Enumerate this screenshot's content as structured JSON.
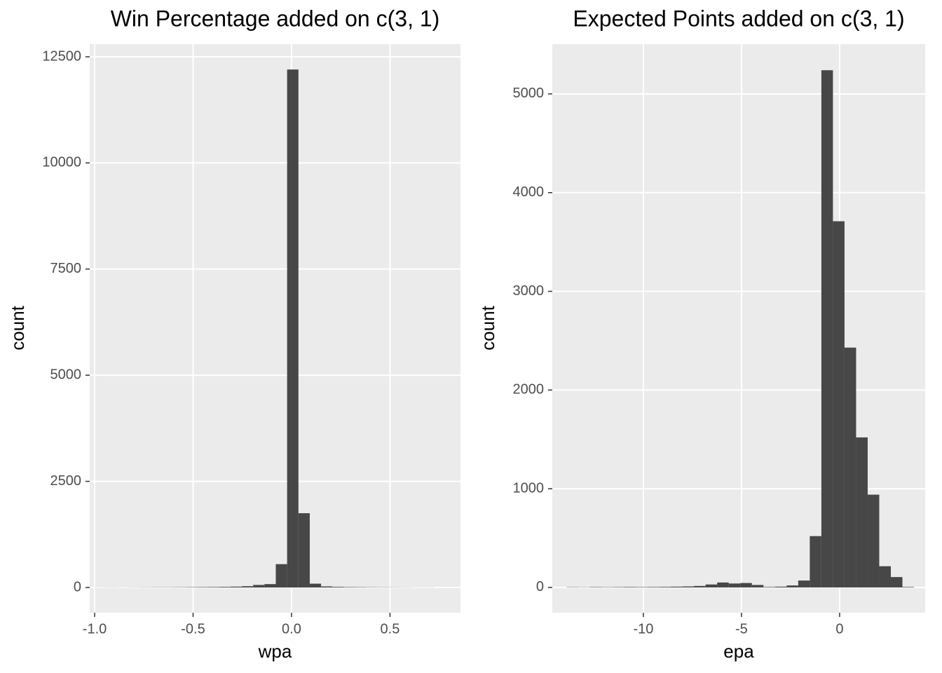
{
  "chart_data": [
    {
      "type": "histogram",
      "title": "Win Percentage added on c(3, 1)",
      "x_label": "wpa",
      "y_label": "count",
      "color": "#474747",
      "grid": true,
      "bins": [
        -1.0,
        -0.9425,
        -0.885,
        -0.8275,
        -0.77,
        -0.7125,
        -0.655,
        -0.5975,
        -0.54,
        -0.4825,
        -0.425,
        -0.3675,
        -0.31,
        -0.2525,
        -0.195,
        -0.1375,
        -0.08,
        -0.0225,
        0.035,
        0.0925,
        0.15,
        0.2075,
        0.265,
        0.3225,
        0.38,
        0.4375,
        0.495,
        0.5525,
        0.61,
        0.6675,
        0.725
      ],
      "values": [
        2,
        3,
        2,
        3,
        4,
        5,
        5,
        6,
        8,
        10,
        12,
        15,
        20,
        30,
        60,
        80,
        550,
        12200,
        1750,
        90,
        25,
        15,
        10,
        8,
        6,
        5,
        4,
        3,
        2,
        2
      ],
      "xlim": [
        -1.025,
        0.858
      ],
      "ylim": [
        -594,
        12797
      ],
      "xticks": [
        {
          "value": -1.0,
          "label": "-1.0"
        },
        -0.5,
        {
          "value": 0.0,
          "label": "0.0"
        },
        0.5
      ],
      "yticks": [
        0,
        2500,
        5000,
        7500,
        10000,
        12500
      ]
    },
    {
      "type": "histogram",
      "title": "Expected Points added on c(3, 1)",
      "x_label": "epa",
      "y_label": "count",
      "color": "#474747",
      "grid": true,
      "bins": [
        -13.91,
        -13.32,
        -12.73,
        -12.14,
        -11.55,
        -10.96,
        -10.37,
        -9.78,
        -9.19,
        -8.6,
        -8.01,
        -7.42,
        -6.83,
        -6.24,
        -5.65,
        -5.06,
        -4.47,
        -3.88,
        -3.29,
        -2.7,
        -2.11,
        -1.52,
        -0.93,
        -0.34,
        0.25,
        0.84,
        1.43,
        2.02,
        2.61,
        3.2,
        3.79
      ],
      "values": [
        3,
        2,
        4,
        3,
        4,
        5,
        4,
        5,
        6,
        8,
        10,
        15,
        30,
        50,
        40,
        45,
        25,
        5,
        8,
        20,
        70,
        520,
        5240,
        3710,
        2430,
        1520,
        940,
        215,
        105,
        5
      ],
      "xlim": [
        -14.64,
        4.36
      ],
      "ylim": [
        -256,
        5504
      ],
      "xticks": [
        -10,
        -5,
        0
      ],
      "yticks": [
        0,
        1000,
        2000,
        3000,
        4000,
        5000
      ]
    }
  ]
}
